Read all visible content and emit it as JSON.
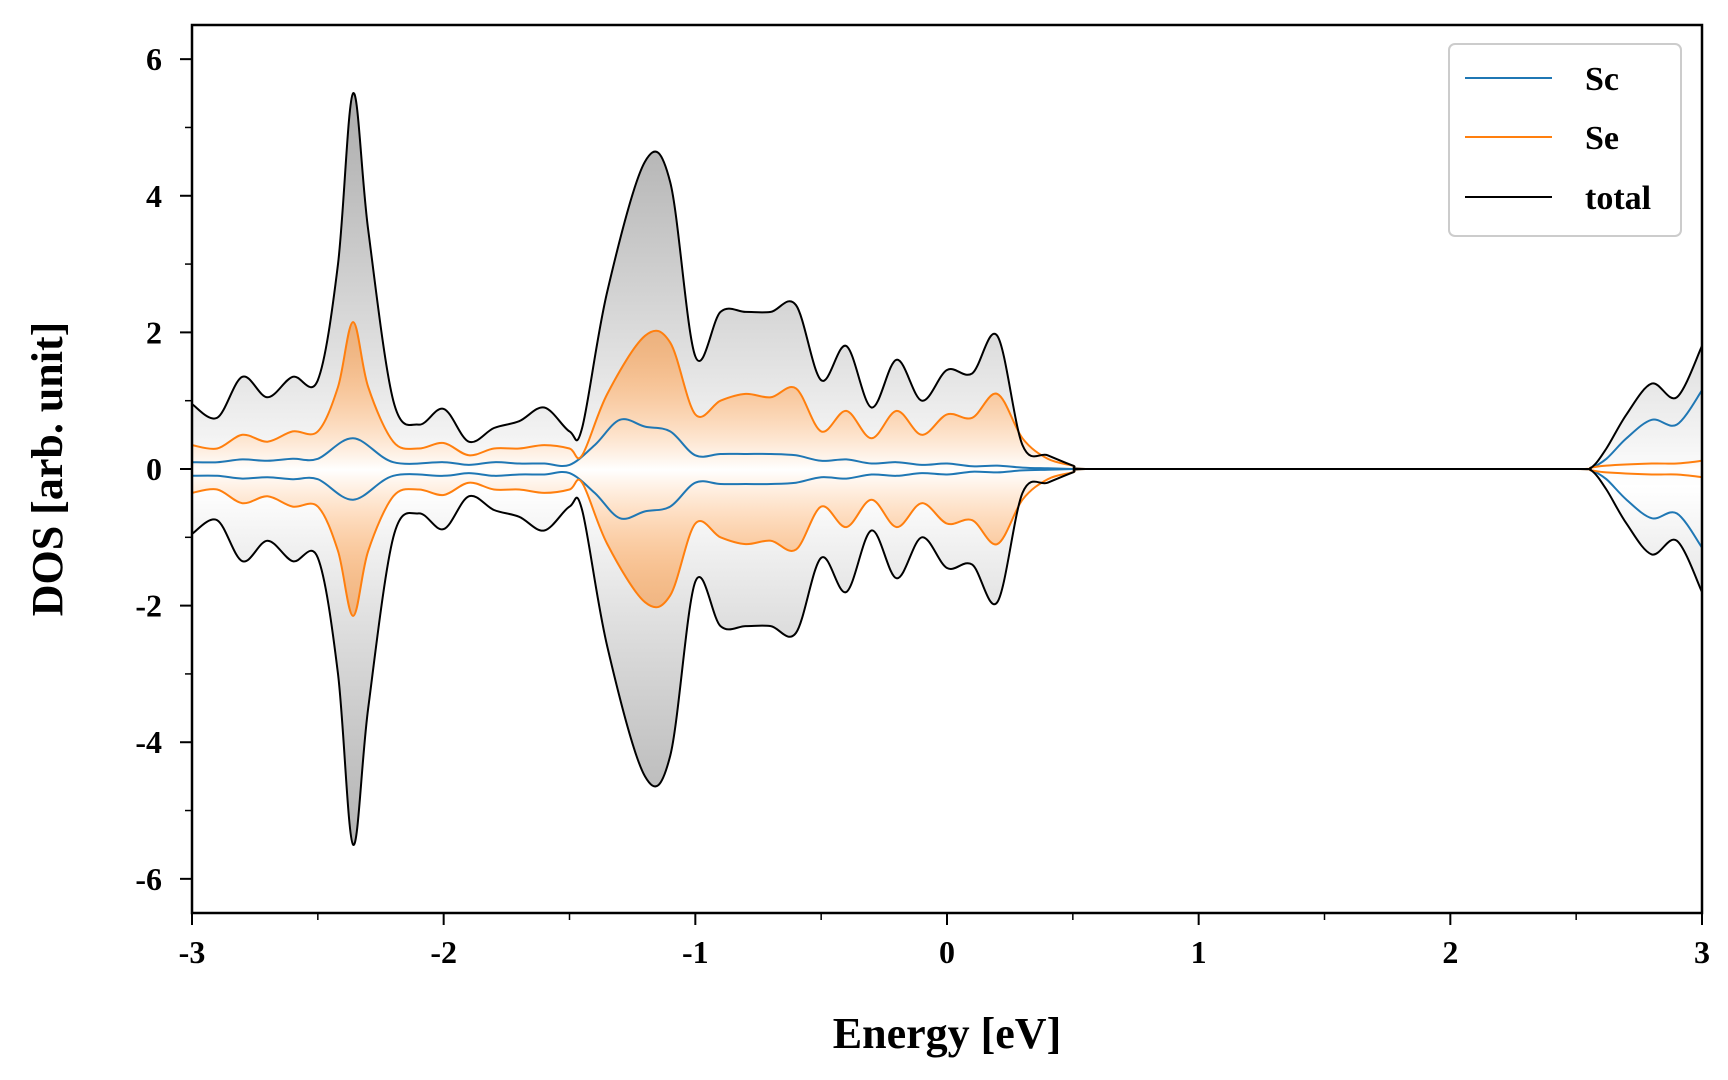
{
  "chart_data": {
    "type": "line",
    "title": "",
    "xlabel": "Energy [eV]",
    "ylabel": "DOS [arb. unit]",
    "xlim": [
      -3,
      3
    ],
    "ylim": [
      -6.5,
      6.5
    ],
    "xticks": [
      -3,
      -2,
      -1,
      0,
      1,
      2,
      3
    ],
    "yticks": [
      -6,
      -4,
      -2,
      0,
      2,
      4,
      6
    ],
    "grid": false,
    "legend_position": "top-right",
    "mirrored": true,
    "colors": {
      "Sc": "#1f77b4",
      "Se": "#ff7f0e",
      "total": "#000000"
    },
    "series": [
      {
        "name": "Sc",
        "x": [
          -3.0,
          -2.9,
          -2.8,
          -2.7,
          -2.6,
          -2.5,
          -2.36,
          -2.2,
          -2.0,
          -1.9,
          -1.8,
          -1.7,
          -1.6,
          -1.5,
          -1.4,
          -1.3,
          -1.2,
          -1.1,
          -1.0,
          -0.9,
          -0.8,
          -0.7,
          -0.6,
          -0.5,
          -0.4,
          -0.3,
          -0.2,
          -0.1,
          0.0,
          0.1,
          0.2,
          0.3,
          0.4,
          0.5,
          0.55,
          1.0,
          1.5,
          2.0,
          2.5,
          2.56,
          2.62,
          2.7,
          2.8,
          2.9,
          3.0
        ],
        "y": [
          0.1,
          0.1,
          0.14,
          0.12,
          0.15,
          0.15,
          0.45,
          0.1,
          0.1,
          0.06,
          0.1,
          0.08,
          0.08,
          0.06,
          0.35,
          0.72,
          0.62,
          0.55,
          0.2,
          0.22,
          0.22,
          0.22,
          0.2,
          0.12,
          0.14,
          0.08,
          0.1,
          0.06,
          0.08,
          0.04,
          0.05,
          0.02,
          0.01,
          0.0,
          0.0,
          0.0,
          0.0,
          0.0,
          0.0,
          0.02,
          0.15,
          0.45,
          0.72,
          0.65,
          1.15
        ]
      },
      {
        "name": "Se",
        "x": [
          -3.0,
          -2.9,
          -2.8,
          -2.7,
          -2.6,
          -2.5,
          -2.42,
          -2.36,
          -2.3,
          -2.2,
          -2.1,
          -2.0,
          -1.9,
          -1.8,
          -1.7,
          -1.6,
          -1.5,
          -1.45,
          -1.35,
          -1.2,
          -1.1,
          -1.0,
          -0.9,
          -0.8,
          -0.7,
          -0.6,
          -0.5,
          -0.4,
          -0.3,
          -0.2,
          -0.1,
          0.0,
          0.1,
          0.2,
          0.3,
          0.4,
          0.5,
          0.55,
          1.0,
          1.5,
          2.0,
          2.5,
          2.56,
          2.62,
          2.8,
          2.9,
          3.0
        ],
        "y": [
          0.35,
          0.3,
          0.5,
          0.4,
          0.55,
          0.55,
          1.2,
          2.15,
          1.2,
          0.4,
          0.3,
          0.38,
          0.2,
          0.3,
          0.3,
          0.35,
          0.3,
          0.2,
          1.1,
          1.95,
          1.85,
          0.8,
          1.0,
          1.1,
          1.05,
          1.18,
          0.55,
          0.85,
          0.45,
          0.85,
          0.5,
          0.8,
          0.75,
          1.1,
          0.45,
          0.15,
          0.05,
          0.0,
          0.0,
          0.0,
          0.0,
          0.0,
          0.02,
          0.05,
          0.08,
          0.08,
          0.12
        ]
      },
      {
        "name": "total",
        "x": [
          -3.0,
          -2.9,
          -2.8,
          -2.7,
          -2.6,
          -2.5,
          -2.42,
          -2.36,
          -2.3,
          -2.2,
          -2.1,
          -2.0,
          -1.9,
          -1.8,
          -1.7,
          -1.6,
          -1.5,
          -1.45,
          -1.35,
          -1.2,
          -1.1,
          -1.0,
          -0.9,
          -0.8,
          -0.7,
          -0.6,
          -0.5,
          -0.4,
          -0.3,
          -0.2,
          -0.1,
          0.0,
          0.1,
          0.2,
          0.3,
          0.4,
          0.5,
          0.55,
          1.0,
          1.5,
          2.0,
          2.5,
          2.56,
          2.62,
          2.7,
          2.8,
          2.9,
          3.0
        ],
        "y": [
          0.95,
          0.75,
          1.35,
          1.05,
          1.35,
          1.3,
          3.0,
          5.5,
          3.5,
          1.0,
          0.65,
          0.88,
          0.4,
          0.6,
          0.7,
          0.9,
          0.55,
          0.6,
          2.6,
          4.5,
          4.2,
          1.65,
          2.3,
          2.3,
          2.3,
          2.4,
          1.3,
          1.8,
          0.9,
          1.6,
          1.0,
          1.45,
          1.4,
          1.95,
          0.35,
          0.2,
          0.05,
          0.0,
          0.0,
          0.0,
          0.0,
          0.0,
          0.02,
          0.3,
          0.8,
          1.25,
          1.05,
          1.8
        ]
      }
    ]
  }
}
